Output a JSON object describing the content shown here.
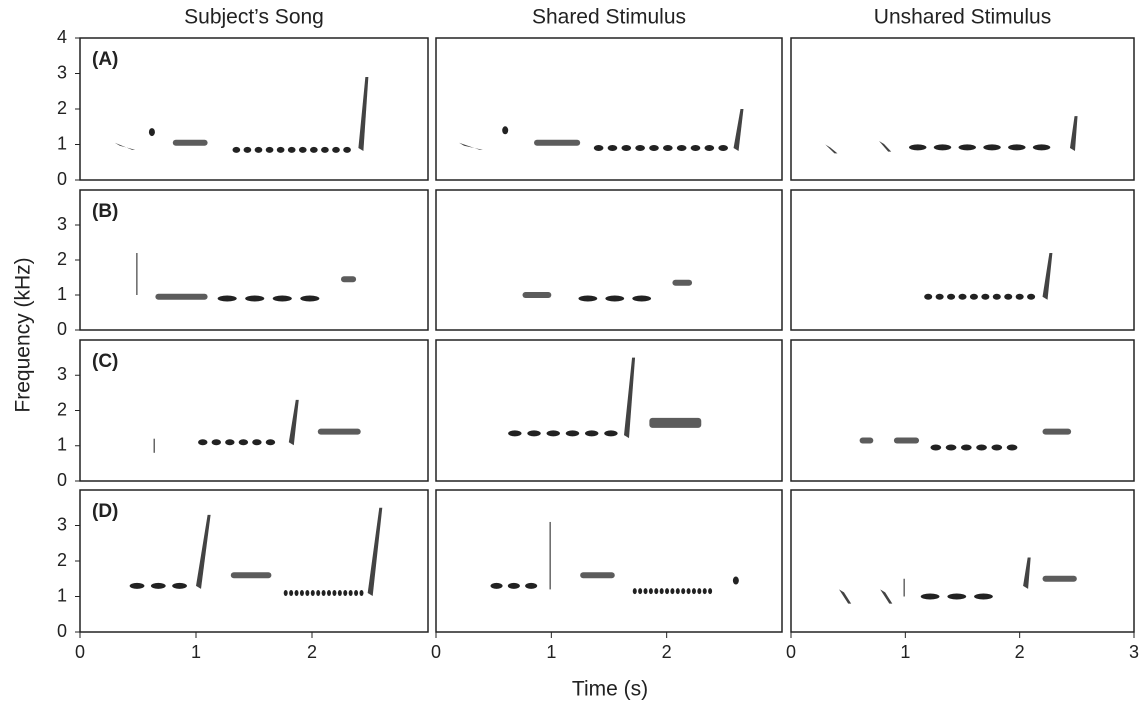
{
  "chart_data": {
    "type": "spectrogram",
    "xlabel": "Time (s)",
    "ylabel": "Frequency (kHz)",
    "xlim": [
      0,
      3
    ],
    "columns": [
      {
        "title": "Subject’s Song",
        "xticks": [
          0,
          1,
          2
        ]
      },
      {
        "title": "Shared Stimulus",
        "xticks": [
          0,
          1,
          2
        ]
      },
      {
        "title": "Unshared Stimulus",
        "xticks": [
          0,
          1,
          2,
          3
        ]
      }
    ],
    "rows": [
      {
        "label": "(A)",
        "ylim": [
          0,
          4
        ],
        "yticks": [
          0,
          1,
          2,
          3,
          4
        ]
      },
      {
        "label": "(B)",
        "ylim": [
          0,
          4
        ],
        "yticks": [
          0,
          1,
          2,
          3
        ]
      },
      {
        "label": "(C)",
        "ylim": [
          0,
          4
        ],
        "yticks": [
          0,
          1,
          2,
          3
        ]
      },
      {
        "label": "(D)",
        "ylim": [
          0,
          4
        ],
        "yticks": [
          0,
          1,
          2,
          3
        ]
      }
    ]
  }
}
